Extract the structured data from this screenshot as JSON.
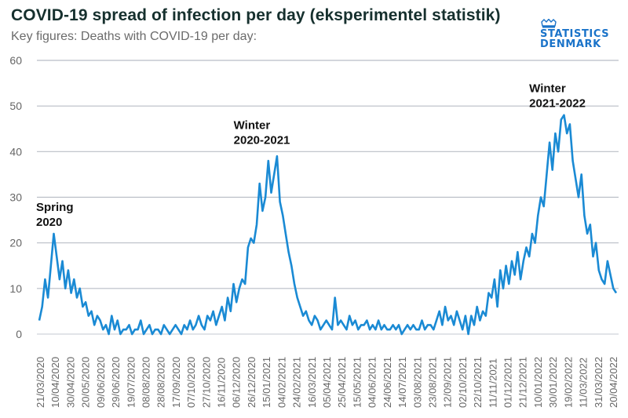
{
  "header": {
    "title": "COVID-19 spread of infection per day (eksperimentel statistik)",
    "subtitle": "Key figures: Deaths with COVID-19 per day:"
  },
  "logo": {
    "line1": "STATISTICS",
    "line2": "DENMARK",
    "icon": "crown-icon",
    "color": "#1a73c9"
  },
  "chart_data": {
    "type": "line",
    "title": "COVID-19 spread of infection per day (eksperimentel statistik)",
    "subtitle": "Key figures: Deaths with COVID-19 per day:",
    "xlabel": "",
    "ylabel": "",
    "ylim": [
      0,
      60
    ],
    "yticks": [
      0,
      10,
      20,
      30,
      40,
      50,
      60
    ],
    "grid": true,
    "legend": "none",
    "line_color": "#1a8ad4",
    "x_start": "14/03/2020",
    "x_step_days": 4,
    "xtick_labels": [
      "21/03/2020",
      "10/04/2020",
      "30/04/2020",
      "20/05/2020",
      "09/06/2020",
      "29/06/2020",
      "19/07/2020",
      "08/08/2020",
      "28/08/2020",
      "17/09/2020",
      "07/10/2020",
      "27/10/2020",
      "16/11/2020",
      "06/12/2020",
      "26/12/2020",
      "15/01/2021",
      "04/02/2021",
      "24/02/2021",
      "16/03/2021",
      "05/04/2021",
      "25/04/2021",
      "15/05/2021",
      "04/06/2021",
      "24/06/2021",
      "14/07/2021",
      "03/08/2021",
      "23/08/2021",
      "12/09/2021",
      "02/10/2021",
      "22/10/2021",
      "11/11/2021",
      "01/12/2021",
      "21/12/2021",
      "10/01/2022",
      "30/01/2022",
      "19/02/2022",
      "11/03/2022",
      "31/03/2022",
      "20/04/2022"
    ],
    "annotations": [
      {
        "text": [
          "Spring",
          "2020"
        ],
        "date_index": 0,
        "y": 27
      },
      {
        "text": [
          "Winter",
          "2020-2021"
        ],
        "date_index": 13.1,
        "y": 45
      },
      {
        "text": [
          "Winter",
          "2021-2022"
        ],
        "date_index": 32.7,
        "y": 53
      }
    ],
    "series": [
      {
        "name": "Deaths with COVID-19 per day",
        "values": [
          3,
          6,
          12,
          8,
          15,
          22,
          17,
          12,
          16,
          10,
          14,
          9,
          12,
          8,
          10,
          6,
          7,
          4,
          5,
          2,
          4,
          3,
          1,
          2,
          0,
          4,
          1,
          3,
          0,
          1,
          1,
          2,
          0,
          1,
          1,
          3,
          0,
          1,
          2,
          0,
          1,
          1,
          0,
          2,
          1,
          0,
          1,
          2,
          1,
          0,
          2,
          1,
          3,
          1,
          2,
          4,
          2,
          1,
          4,
          3,
          5,
          2,
          4,
          6,
          3,
          8,
          5,
          11,
          7,
          10,
          12,
          11,
          19,
          21,
          20,
          24,
          33,
          27,
          30,
          38,
          31,
          35,
          39,
          29,
          26,
          22,
          18,
          15,
          11,
          8,
          6,
          4,
          5,
          3,
          2,
          4,
          3,
          1,
          2,
          3,
          2,
          1,
          8,
          2,
          3,
          2,
          1,
          4,
          2,
          3,
          1,
          2,
          2,
          3,
          1,
          2,
          1,
          3,
          1,
          2,
          1,
          1,
          2,
          1,
          2,
          0,
          1,
          2,
          1,
          2,
          1,
          1,
          3,
          1,
          2,
          2,
          1,
          3,
          5,
          2,
          6,
          3,
          4,
          2,
          5,
          3,
          1,
          4,
          0,
          4,
          2,
          6,
          3,
          5,
          4,
          9,
          8,
          12,
          6,
          14,
          10,
          15,
          11,
          16,
          13,
          18,
          12,
          16,
          19,
          17,
          22,
          20,
          26,
          30,
          28,
          35,
          42,
          36,
          44,
          40,
          47,
          48,
          44,
          46,
          38,
          34,
          30,
          35,
          26,
          22,
          24,
          17,
          20,
          14,
          12,
          11,
          16,
          13,
          10,
          9
        ]
      }
    ]
  }
}
